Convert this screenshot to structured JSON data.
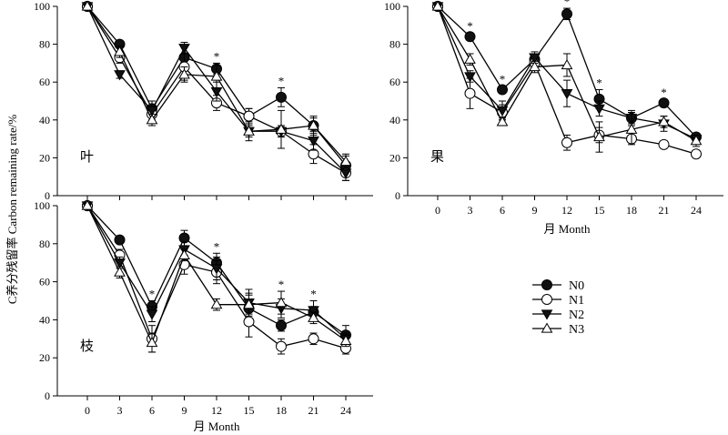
{
  "ylabel": "C养分残留率 Carbon remaining rate/%",
  "series_styles": [
    {
      "name": "N0",
      "marker": "circle-filled"
    },
    {
      "name": "N1",
      "marker": "circle-open"
    },
    {
      "name": "N2",
      "marker": "triangle-down-filled"
    },
    {
      "name": "N3",
      "marker": "triangle-up-open"
    }
  ],
  "colors": {
    "line": "#000000",
    "fill_dark": "#111111",
    "fill_light": "#ffffff"
  },
  "chart_data": [
    {
      "type": "line",
      "panel": "叶",
      "xlabel": "",
      "xlim": [
        0,
        24
      ],
      "ylim": [
        0,
        100
      ],
      "xticks": [],
      "yticks": [
        0,
        20,
        40,
        60,
        80,
        100
      ],
      "x": [
        0,
        3,
        6,
        9,
        12,
        15,
        18,
        21,
        24
      ],
      "series": [
        {
          "name": "N0",
          "values": [
            100,
            80,
            46,
            73,
            67,
            42,
            52,
            37,
            16
          ],
          "err": [
            0,
            2,
            4,
            6,
            3,
            4,
            5,
            5,
            5
          ]
        },
        {
          "name": "N1",
          "values": [
            100,
            73,
            43,
            68,
            49,
            42,
            34,
            22,
            12
          ],
          "err": [
            0,
            3,
            4,
            7,
            4,
            4,
            3,
            5,
            4
          ]
        },
        {
          "name": "N2",
          "values": [
            100,
            64,
            45,
            78,
            55,
            34,
            34,
            29,
            12
          ],
          "err": [
            0,
            2,
            5,
            3,
            5,
            3,
            3,
            5,
            4
          ]
        },
        {
          "name": "N3",
          "values": [
            100,
            76,
            40,
            64,
            63,
            34,
            35,
            37,
            18
          ],
          "err": [
            0,
            3,
            3,
            4,
            6,
            5,
            10,
            4,
            4
          ]
        }
      ],
      "significance_x": [
        12,
        18
      ]
    },
    {
      "type": "line",
      "panel": "果",
      "xlabel": "月 Month",
      "xlim": [
        0,
        24
      ],
      "ylim": [
        0,
        100
      ],
      "xticks": [
        0,
        3,
        6,
        9,
        12,
        15,
        18,
        21,
        24
      ],
      "yticks": [
        0,
        20,
        40,
        60,
        80,
        100
      ],
      "x": [
        0,
        3,
        6,
        9,
        12,
        15,
        18,
        21,
        24
      ],
      "series": [
        {
          "name": "N0",
          "values": [
            100,
            84,
            56,
            72,
            96,
            51,
            41,
            49,
            31
          ],
          "err": [
            0,
            2,
            2,
            2,
            3,
            5,
            4,
            2,
            2
          ]
        },
        {
          "name": "N1",
          "values": [
            100,
            54,
            44,
            70,
            28,
            32,
            30,
            27,
            22
          ],
          "err": [
            0,
            8,
            4,
            3,
            4,
            4,
            2,
            2,
            2
          ]
        },
        {
          "name": "N2",
          "values": [
            100,
            63,
            45,
            73,
            54,
            46,
            41,
            38,
            30
          ],
          "err": [
            0,
            3,
            5,
            3,
            7,
            4,
            3,
            4,
            2
          ]
        },
        {
          "name": "N3",
          "values": [
            100,
            72,
            39,
            68,
            69,
            31,
            35,
            39,
            29
          ],
          "err": [
            0,
            3,
            2,
            3,
            6,
            8,
            8,
            3,
            3
          ]
        }
      ],
      "significance_x": [
        3,
        6,
        12,
        15,
        21
      ]
    },
    {
      "type": "line",
      "panel": "枝",
      "xlabel": "月 Month",
      "xlim": [
        0,
        24
      ],
      "ylim": [
        0,
        100
      ],
      "xticks": [
        0,
        3,
        6,
        9,
        12,
        15,
        18,
        21,
        24
      ],
      "yticks": [
        0,
        20,
        40,
        60,
        80,
        100
      ],
      "x": [
        0,
        3,
        6,
        9,
        12,
        15,
        18,
        21,
        24
      ],
      "series": [
        {
          "name": "N0",
          "values": [
            100,
            82,
            47,
            83,
            70,
            46,
            37,
            44,
            32
          ],
          "err": [
            0,
            2,
            3,
            4,
            5,
            8,
            3,
            3,
            5
          ]
        },
        {
          "name": "N1",
          "values": [
            100,
            74,
            30,
            69,
            65,
            39,
            26,
            30,
            25
          ],
          "err": [
            0,
            3,
            7,
            5,
            6,
            8,
            4,
            3,
            3
          ]
        },
        {
          "name": "N2",
          "values": [
            100,
            70,
            43,
            77,
            67,
            49,
            46,
            45,
            30
          ],
          "err": [
            0,
            3,
            4,
            4,
            6,
            7,
            5,
            5,
            3
          ]
        },
        {
          "name": "N3",
          "values": [
            100,
            65,
            28,
            74,
            48,
            48,
            49,
            41,
            29
          ],
          "err": [
            0,
            3,
            5,
            3,
            3,
            5,
            6,
            3,
            3
          ]
        }
      ],
      "significance_x": [
        6,
        12,
        18,
        21
      ]
    }
  ],
  "legend": {
    "position": "bottom-right",
    "entries": [
      "N0",
      "N1",
      "N2",
      "N3"
    ]
  }
}
